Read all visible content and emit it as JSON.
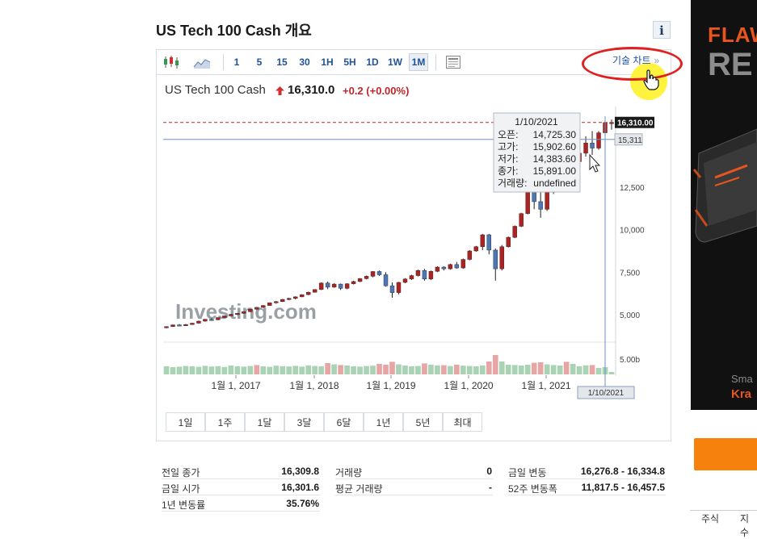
{
  "header": {
    "title": "US Tech 100 Cash 개요",
    "info_label": "i"
  },
  "toolbar": {
    "intervals": [
      "1",
      "5",
      "15",
      "30",
      "1H",
      "5H",
      "1D",
      "1W",
      "1M"
    ],
    "selected_interval": "1M",
    "tech_chart_label": "기술 차트",
    "tech_chart_arrow": "»"
  },
  "quote": {
    "name": "US Tech 100 Cash",
    "price": "16,310.0",
    "change": "+0.2",
    "change_pct": "(+0.00%)",
    "direction": "up"
  },
  "chart_data": {
    "type": "candlestick",
    "x_ticks": [
      "1월 1, 2017",
      "1월 1, 2018",
      "1월 1, 2019",
      "1월 1, 2020",
      "1월 1, 2021"
    ],
    "y_ticks": [
      "12,500",
      "10,000",
      "7,500",
      "5,000"
    ],
    "ylim": [
      3900,
      16700
    ],
    "volume_tick": "5.00b",
    "last_price_label": "16,310.00",
    "crosshair_price_label": "15,311",
    "crosshair_date_label": "1/10/2021",
    "watermark": "Investing.com",
    "grid": false,
    "colors": {
      "up": "#b32020",
      "down": "#4d78b8",
      "vol_up": "#e7a6a6",
      "vol_down": "#a9d3b4"
    },
    "tooltip": {
      "date": "1/10/2021",
      "rows": [
        {
          "label": "오픈:",
          "value": "14,725.30"
        },
        {
          "label": "고가:",
          "value": "15,902.60"
        },
        {
          "label": "저가:",
          "value": "14,383.60"
        },
        {
          "label": "종가:",
          "value": "15,891.00"
        },
        {
          "label": "거래량:",
          "value": "undefined"
        }
      ]
    },
    "candles": [
      [
        4270,
        4320,
        4200,
        4300
      ],
      [
        4300,
        4420,
        4280,
        4400
      ],
      [
        4400,
        4450,
        4350,
        4380
      ],
      [
        4380,
        4450,
        4350,
        4420
      ],
      [
        4420,
        4520,
        4400,
        4500
      ],
      [
        4500,
        4650,
        4470,
        4620
      ],
      [
        4620,
        4750,
        4590,
        4730
      ],
      [
        4730,
        4790,
        4650,
        4700
      ],
      [
        4700,
        4850,
        4680,
        4830
      ],
      [
        4830,
        4950,
        4800,
        4930
      ],
      [
        4930,
        5050,
        4900,
        5020
      ],
      [
        5020,
        5100,
        4980,
        5080
      ],
      [
        5080,
        5200,
        5050,
        5180
      ],
      [
        5180,
        5350,
        5150,
        5320
      ],
      [
        5320,
        5450,
        5300,
        5430
      ],
      [
        5430,
        5560,
        5400,
        5540
      ],
      [
        5540,
        5720,
        5520,
        5700
      ],
      [
        5700,
        5800,
        5650,
        5770
      ],
      [
        5770,
        5920,
        5750,
        5900
      ],
      [
        5900,
        6000,
        5850,
        5960
      ],
      [
        5960,
        6080,
        5900,
        6050
      ],
      [
        6050,
        6200,
        6030,
        6180
      ],
      [
        6180,
        6350,
        6150,
        6320
      ],
      [
        6320,
        6500,
        6300,
        6480
      ],
      [
        6480,
        6900,
        6450,
        6860
      ],
      [
        6860,
        6950,
        6500,
        6620
      ],
      [
        6620,
        6850,
        6580,
        6800
      ],
      [
        6800,
        6830,
        6450,
        6550
      ],
      [
        6550,
        6850,
        6500,
        6820
      ],
      [
        6820,
        7000,
        6780,
        6950
      ],
      [
        6950,
        7150,
        6920,
        7120
      ],
      [
        7120,
        7300,
        7080,
        7260
      ],
      [
        7260,
        7560,
        7200,
        7540
      ],
      [
        7540,
        7600,
        7280,
        7350
      ],
      [
        7350,
        7500,
        6650,
        6700
      ],
      [
        6700,
        6900,
        6000,
        6300
      ],
      [
        6300,
        6930,
        6200,
        6900
      ],
      [
        6900,
        7150,
        6850,
        7100
      ],
      [
        7100,
        7350,
        7050,
        7300
      ],
      [
        7300,
        7650,
        7250,
        7600
      ],
      [
        7600,
        7700,
        7000,
        7100
      ],
      [
        7100,
        7600,
        7050,
        7550
      ],
      [
        7550,
        7850,
        7500,
        7800
      ],
      [
        7800,
        7850,
        7600,
        7700
      ],
      [
        7700,
        8000,
        7650,
        7950
      ],
      [
        7950,
        8100,
        7700,
        7750
      ],
      [
        7750,
        8300,
        7700,
        8250
      ],
      [
        8250,
        8800,
        8200,
        8750
      ],
      [
        8750,
        9050,
        8700,
        9000
      ],
      [
        9000,
        9750,
        8800,
        9700
      ],
      [
        9700,
        9750,
        8550,
        8800
      ],
      [
        8800,
        8900,
        7000,
        7700
      ],
      [
        7700,
        9100,
        7600,
        9000
      ],
      [
        9000,
        9600,
        8950,
        9550
      ],
      [
        9550,
        10250,
        9500,
        10200
      ],
      [
        10200,
        11000,
        10150,
        10950
      ],
      [
        10950,
        12450,
        10900,
        12300
      ],
      [
        12300,
        12600,
        11200,
        11650
      ],
      [
        11650,
        12300,
        10700,
        11200
      ],
      [
        11200,
        12300,
        11100,
        12200
      ],
      [
        12200,
        12800,
        12100,
        12700
      ],
      [
        12700,
        13300,
        12650,
        13250
      ],
      [
        13250,
        13900,
        12500,
        12950
      ],
      [
        12950,
        14100,
        12900,
        14000
      ],
      [
        14000,
        14600,
        13500,
        14500
      ],
      [
        14500,
        15500,
        14300,
        15100
      ],
      [
        15100,
        15800,
        14400,
        14800
      ],
      [
        14800,
        15800,
        14700,
        15700
      ],
      [
        15700,
        16450,
        15550,
        16300
      ],
      [
        16250,
        16480,
        15880,
        16310
      ]
    ],
    "volumes": [
      [
        0.5,
        0
      ],
      [
        0.45,
        0
      ],
      [
        0.48,
        0
      ],
      [
        0.52,
        0
      ],
      [
        0.5,
        0
      ],
      [
        0.47,
        0
      ],
      [
        0.53,
        0
      ],
      [
        0.49,
        0
      ],
      [
        0.51,
        0
      ],
      [
        0.46,
        0
      ],
      [
        0.55,
        0
      ],
      [
        0.5,
        0
      ],
      [
        0.48,
        0
      ],
      [
        0.52,
        0
      ],
      [
        0.58,
        1
      ],
      [
        0.5,
        0
      ],
      [
        0.47,
        0
      ],
      [
        0.54,
        0
      ],
      [
        0.51,
        0
      ],
      [
        0.49,
        0
      ],
      [
        0.53,
        0
      ],
      [
        0.48,
        0
      ],
      [
        0.56,
        0
      ],
      [
        0.52,
        0
      ],
      [
        0.5,
        0
      ],
      [
        0.7,
        1
      ],
      [
        0.62,
        0
      ],
      [
        0.58,
        1
      ],
      [
        0.55,
        0
      ],
      [
        0.5,
        0
      ],
      [
        0.48,
        0
      ],
      [
        0.52,
        0
      ],
      [
        0.54,
        0
      ],
      [
        0.65,
        1
      ],
      [
        0.6,
        1
      ],
      [
        0.78,
        1
      ],
      [
        0.62,
        0
      ],
      [
        0.55,
        0
      ],
      [
        0.5,
        0
      ],
      [
        0.52,
        0
      ],
      [
        0.68,
        1
      ],
      [
        0.6,
        0
      ],
      [
        0.55,
        0
      ],
      [
        0.57,
        1
      ],
      [
        0.52,
        0
      ],
      [
        0.6,
        1
      ],
      [
        0.54,
        0
      ],
      [
        0.52,
        0
      ],
      [
        0.5,
        0
      ],
      [
        0.55,
        0
      ],
      [
        0.8,
        1
      ],
      [
        1.2,
        1
      ],
      [
        0.8,
        0
      ],
      [
        0.6,
        0
      ],
      [
        0.58,
        0
      ],
      [
        0.55,
        0
      ],
      [
        0.6,
        0
      ],
      [
        0.72,
        1
      ],
      [
        0.75,
        1
      ],
      [
        0.62,
        0
      ],
      [
        0.58,
        0
      ],
      [
        0.55,
        0
      ],
      [
        0.78,
        1
      ],
      [
        0.65,
        0
      ],
      [
        0.5,
        0
      ],
      [
        0.56,
        0
      ],
      [
        0.58,
        1
      ],
      [
        0.4,
        0
      ],
      [
        0.45,
        0
      ],
      [
        0.15,
        0
      ]
    ]
  },
  "ranges": [
    "1일",
    "1주",
    "1달",
    "3달",
    "6달",
    "1년",
    "5년",
    "최대"
  ],
  "stats": [
    {
      "label": "전일 종가",
      "value": "16,309.8"
    },
    {
      "label": "금일 시가",
      "value": "16,301.6"
    },
    {
      "label": "1년 변동률",
      "value": "35.76%"
    },
    {
      "label": "거래량",
      "value": "0"
    },
    {
      "label": "평균 거래량",
      "value": "-"
    },
    {
      "label": "금일 변동",
      "value": "16,276.8 - 16,334.8"
    },
    {
      "label": "52주 변동폭",
      "value": "11,817.5 - 16,457.5"
    }
  ],
  "ad": {
    "line1": "FLAW",
    "line2": "RE",
    "line3": "Sma",
    "line4": "Kra"
  },
  "side_tabs": [
    "주식",
    "지수"
  ]
}
